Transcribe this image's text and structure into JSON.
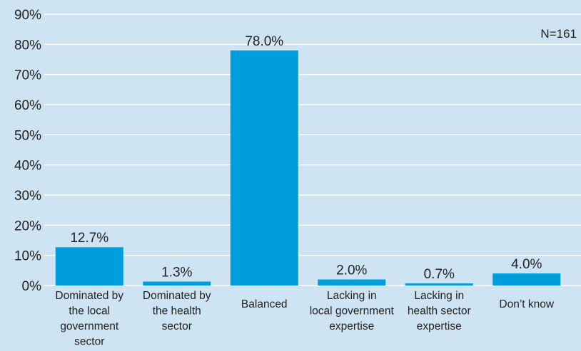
{
  "chart_data": {
    "type": "bar",
    "categories": [
      [
        "Dominated by",
        "the local",
        "government",
        "sector"
      ],
      [
        "Dominated by",
        "the health",
        "sector"
      ],
      [
        "Balanced"
      ],
      [
        "Lacking in",
        "local government",
        "expertise"
      ],
      [
        "Lacking in",
        "health sector",
        "expertise"
      ],
      [
        "Don’t know"
      ]
    ],
    "values": [
      12.7,
      1.3,
      78.0,
      2.0,
      0.7,
      4.0
    ],
    "data_labels": [
      "12.7%",
      "1.3%",
      "78.0%",
      "2.0%",
      "0.7%",
      "4.0%"
    ],
    "yticks": [
      0,
      10,
      20,
      30,
      40,
      50,
      60,
      70,
      80,
      90
    ],
    "ytick_labels": [
      "0%",
      "10%",
      "20%",
      "30%",
      "40%",
      "50%",
      "60%",
      "70%",
      "80%",
      "90%"
    ],
    "ylim": [
      0,
      90
    ],
    "grid": true,
    "annotation": "N=161",
    "colors": {
      "background": "#cfe4f2",
      "bar": "#009ddc",
      "grid": "#ffffff",
      "text": "#222222"
    }
  }
}
